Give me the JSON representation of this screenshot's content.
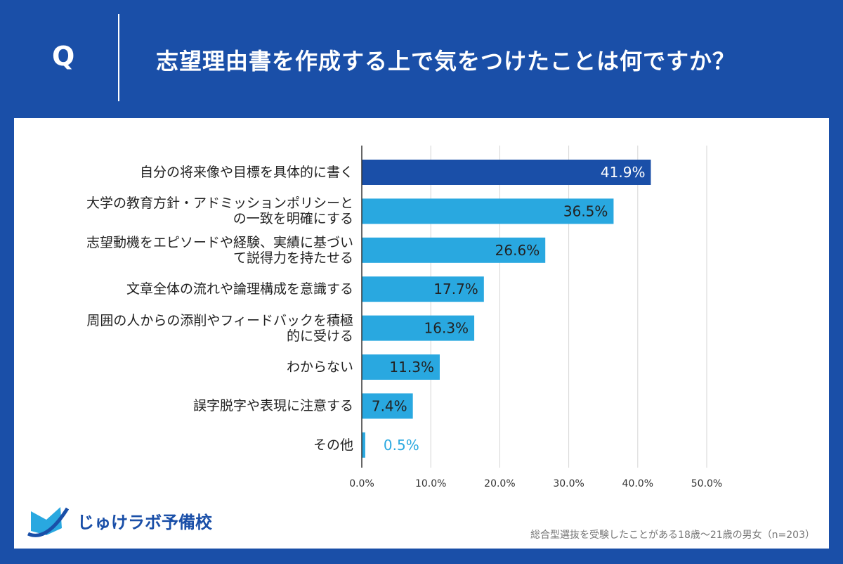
{
  "header": {
    "q_label": "Q",
    "title": "志望理由書を作成する上で気をつけたことは何ですか？"
  },
  "footer": {
    "logo_text": "じゅけラボ予備校",
    "note": "総合型選抜を受験したことがある18歳～21歳の男女（n=203）"
  },
  "chart_data": {
    "type": "bar",
    "orientation": "horizontal",
    "categories": [
      "自分の将来像や目標を具体的に書く",
      "大学の教育方針・アドミッションポリシーとの一致を明確にする",
      "志望動機をエピソードや経験、実績に基づいて説得力を持たせる",
      "文章全体の流れや論理構成を意識する",
      "周囲の人からの添削やフィードバックを積極的に受ける",
      "わからない",
      "誤字脱字や表現に注意する",
      "その他"
    ],
    "values": [
      41.9,
      36.5,
      26.6,
      17.7,
      16.3,
      11.3,
      7.4,
      0.5
    ],
    "data_labels": [
      "41.9%",
      "36.5%",
      "26.6%",
      "17.7%",
      "16.3%",
      "11.3%",
      "7.4%",
      "0.5%"
    ],
    "xlim": [
      0,
      50
    ],
    "x_ticks": [
      "0.0%",
      "10.0%",
      "20.0%",
      "30.0%",
      "40.0%",
      "50.0%"
    ],
    "grid": true,
    "colors": {
      "highlight": "#1a4fa8",
      "bar": "#29a8e0",
      "outside_label": "#29a8e0"
    }
  }
}
